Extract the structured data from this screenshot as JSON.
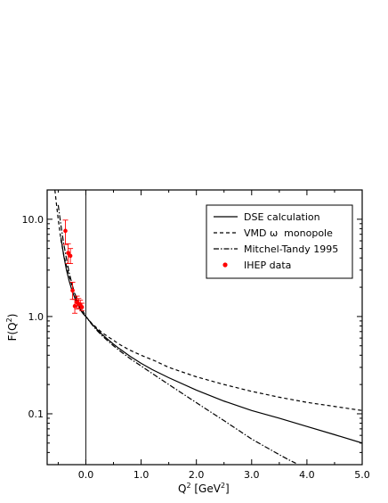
{
  "chart_data": {
    "type": "line",
    "title": "",
    "xlabel": "Q",
    "xlabel_sup": "2",
    "xlabel_unit_prefix": " [GeV",
    "xlabel_unit_sup": "2",
    "xlabel_unit_suffix": "]",
    "ylabel_prefix": "F(Q",
    "ylabel_sup": "2",
    "ylabel_suffix": ")",
    "xlim": [
      -0.7,
      5.0
    ],
    "ylim": [
      0.03,
      20
    ],
    "yscale": "log",
    "grid": false,
    "legend_position": "top-right",
    "x_ticks": [
      0.0,
      1.0,
      2.0,
      3.0,
      4.0,
      5.0
    ],
    "x_tick_labels": [
      "0.0",
      "1.0",
      "2.0",
      "3.0",
      "4.0",
      "5.0"
    ],
    "y_ticks": [
      0.1,
      1.0,
      10.0
    ],
    "y_tick_labels": [
      "0.1",
      "1.0",
      "10.0"
    ],
    "vertical_line_x": 0.0,
    "series": [
      {
        "name": "DSE calculation",
        "style": "solid",
        "color": "#000000",
        "x": [
          -0.45,
          -0.4,
          -0.35,
          -0.3,
          -0.25,
          -0.2,
          -0.15,
          -0.1,
          -0.05,
          0.0,
          0.1,
          0.2,
          0.3,
          0.4,
          0.5,
          0.6,
          0.8,
          1.0,
          1.2,
          1.5,
          2.0,
          2.5,
          3.0,
          3.5,
          4.0,
          4.5,
          5.0
        ],
        "y": [
          6.5,
          4.2,
          3.0,
          2.3,
          1.85,
          1.55,
          1.33,
          1.17,
          1.07,
          1.0,
          0.85,
          0.74,
          0.65,
          0.58,
          0.52,
          0.47,
          0.39,
          0.33,
          0.285,
          0.235,
          0.175,
          0.135,
          0.108,
          0.09,
          0.074,
          0.061,
          0.05
        ]
      },
      {
        "name": "VMD ω  monopole",
        "style": "dashed",
        "color": "#000000",
        "x": [
          -0.56,
          -0.53,
          -0.5,
          -0.45,
          -0.4,
          -0.35,
          -0.3,
          -0.25,
          -0.2,
          -0.15,
          -0.1,
          -0.05,
          0.0,
          0.1,
          0.2,
          0.3,
          0.4,
          0.5,
          0.6,
          0.8,
          1.0,
          1.25,
          1.5,
          2.0,
          2.5,
          3.0,
          3.5,
          4.0,
          4.5,
          5.0
        ],
        "y": [
          20,
          14.0,
          10.0,
          6.1,
          4.3,
          3.3,
          2.6,
          2.08,
          1.73,
          1.47,
          1.28,
          1.13,
          1.0,
          0.86,
          0.76,
          0.68,
          0.62,
          0.57,
          0.52,
          0.45,
          0.4,
          0.35,
          0.3,
          0.24,
          0.2,
          0.17,
          0.148,
          0.131,
          0.119,
          0.108
        ]
      },
      {
        "name": "Mitchel-Tandy 1995",
        "style": "dashdot",
        "color": "#000000",
        "x": [
          -0.5,
          -0.45,
          -0.4,
          -0.35,
          -0.3,
          -0.25,
          -0.2,
          -0.15,
          -0.1,
          -0.05,
          0.0,
          0.1,
          0.2,
          0.3,
          0.4,
          0.5,
          0.6,
          0.8,
          1.0,
          1.2,
          1.5,
          2.0,
          2.5,
          3.0,
          3.5,
          3.7,
          3.8
        ],
        "y": [
          14.0,
          8.6,
          5.6,
          3.9,
          2.8,
          2.15,
          1.7,
          1.4,
          1.2,
          1.08,
          1.0,
          0.84,
          0.72,
          0.63,
          0.56,
          0.5,
          0.45,
          0.37,
          0.31,
          0.26,
          0.2,
          0.13,
          0.085,
          0.055,
          0.038,
          0.033,
          0.031
        ]
      }
    ],
    "data_points": {
      "name": "IHEP data",
      "color": "#ff0000",
      "points": [
        {
          "x": -0.37,
          "y": 7.6,
          "err_low": 2.1,
          "err_high": 2.2
        },
        {
          "x": -0.32,
          "y": 4.5,
          "err_low": 1.0,
          "err_high": 1.1
        },
        {
          "x": -0.28,
          "y": 4.2,
          "err_low": 0.7,
          "err_high": 0.8
        },
        {
          "x": -0.24,
          "y": 1.85,
          "err_low": 0.35,
          "err_high": 0.4
        },
        {
          "x": -0.2,
          "y": 1.28,
          "err_low": 0.2,
          "err_high": 0.22
        },
        {
          "x": -0.16,
          "y": 1.4,
          "err_low": 0.2,
          "err_high": 0.22
        },
        {
          "x": -0.13,
          "y": 1.35,
          "err_low": 0.15,
          "err_high": 0.18
        },
        {
          "x": -0.1,
          "y": 1.33,
          "err_low": 0.12,
          "err_high": 0.14
        },
        {
          "x": -0.07,
          "y": 1.25,
          "err_low": 0.1,
          "err_high": 0.12
        }
      ]
    }
  }
}
